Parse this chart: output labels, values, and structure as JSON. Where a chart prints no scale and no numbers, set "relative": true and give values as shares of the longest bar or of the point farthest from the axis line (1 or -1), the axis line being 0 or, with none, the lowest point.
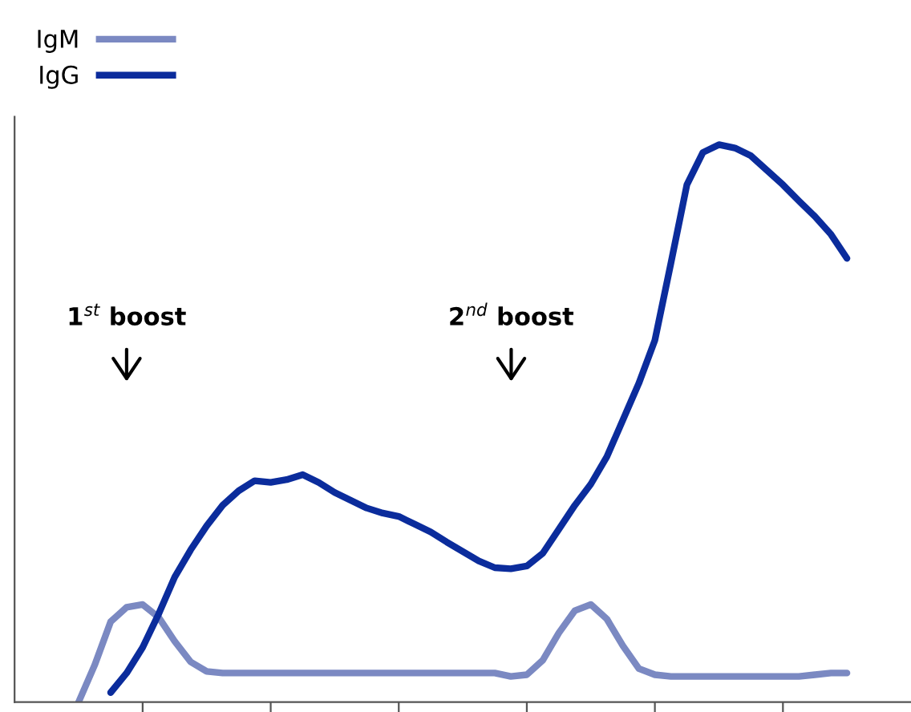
{
  "chart_data": {
    "type": "line",
    "relative": true,
    "legend": "top left",
    "grid": false,
    "categories": [
      null,
      null,
      null,
      null,
      null,
      null,
      null,
      null,
      null,
      null,
      null,
      null,
      null,
      null,
      null,
      null,
      null,
      null,
      null,
      null,
      null,
      null,
      null,
      null,
      null,
      null,
      null,
      null,
      null,
      null,
      null,
      null,
      null,
      null,
      null,
      null,
      null,
      null,
      null,
      null,
      null,
      null,
      null,
      null,
      null,
      null,
      null,
      null,
      null
    ],
    "series": [
      {
        "name": "IgM",
        "color": "#7b89c2",
        "values": [
          0,
          0.066,
          0.144,
          0.17,
          0.175,
          0.152,
          0.109,
          0.072,
          0.055,
          0.052,
          0.052,
          0.052,
          0.052,
          0.052,
          0.052,
          0.052,
          0.052,
          0.052,
          0.052,
          0.052,
          0.052,
          0.052,
          0.052,
          0.052,
          0.052,
          0.052,
          0.052,
          0.046,
          0.049,
          0.075,
          0.124,
          0.164,
          0.175,
          0.149,
          0.101,
          0.06,
          0.049,
          0.046,
          0.046,
          0.046,
          0.046,
          0.046,
          0.046,
          0.046,
          0.046,
          0.046,
          0.049,
          0.052,
          0.052
        ]
      },
      {
        "name": "IgG",
        "color": "#0b2c9c",
        "values": [
          null,
          null,
          0.017,
          0.052,
          0.098,
          0.158,
          0.224,
          0.273,
          0.316,
          0.353,
          0.379,
          0.397,
          0.394,
          0.399,
          0.408,
          0.394,
          0.376,
          0.362,
          0.348,
          0.339,
          0.333,
          0.319,
          0.305,
          0.287,
          0.27,
          0.253,
          0.241,
          0.239,
          0.244,
          0.267,
          0.31,
          0.353,
          0.391,
          0.44,
          0.506,
          0.572,
          0.649,
          0.787,
          0.928,
          0.986,
          1,
          0.994,
          0.98,
          0.954,
          0.928,
          0.899,
          0.871,
          0.839,
          0.796
        ]
      }
    ],
    "annotations": [
      "1$^{st}$ boost",
      "2$^{nd}$ boost"
    ]
  }
}
